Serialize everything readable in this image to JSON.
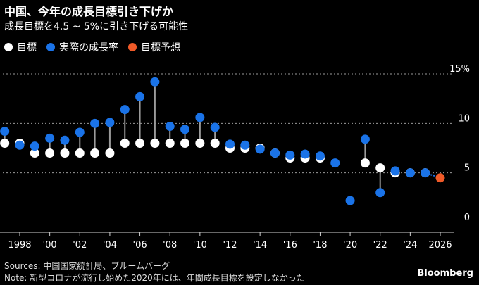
{
  "header": {
    "title": "中国、今年の成長目標引き下げか",
    "subtitle": "成長目標を4.5 ~ 5%に引き下げる可能性"
  },
  "legend": [
    {
      "label": "目標",
      "color": "#ffffff"
    },
    {
      "label": "実際の成長率",
      "color": "#1a73e8"
    },
    {
      "label": "目標予想",
      "color": "#f05a28"
    }
  ],
  "chart_data": {
    "type": "scatter",
    "title": "中国、今年の成長目標引き下げか",
    "ylim": [
      0,
      15
    ],
    "yticks": [
      0,
      5,
      10,
      15
    ],
    "ytick_labels": [
      "0",
      "5",
      "10",
      "15%"
    ],
    "gridlines": [
      5,
      10,
      15
    ],
    "xlim": [
      1997,
      2027
    ],
    "xticks": [
      1998,
      2000,
      2002,
      2004,
      2006,
      2008,
      2010,
      2012,
      2014,
      2016,
      2018,
      2020,
      2022,
      2024,
      2026
    ],
    "xtick_labels": [
      "1998",
      "'00",
      "'02",
      "'04",
      "'06",
      "'08",
      "'10",
      "'12",
      "'14",
      "'16",
      "'18",
      "'20",
      "'22",
      "'24",
      "2026"
    ],
    "series": [
      {
        "name": "目標",
        "color": "#ffffff",
        "points": [
          [
            1997,
            8
          ],
          [
            1998,
            8
          ],
          [
            1999,
            7
          ],
          [
            2000,
            7
          ],
          [
            2001,
            7
          ],
          [
            2002,
            7
          ],
          [
            2003,
            7
          ],
          [
            2004,
            7
          ],
          [
            2005,
            8
          ],
          [
            2006,
            8
          ],
          [
            2007,
            8
          ],
          [
            2008,
            8
          ],
          [
            2009,
            8
          ],
          [
            2010,
            8
          ],
          [
            2011,
            8
          ],
          [
            2012,
            7.5
          ],
          [
            2013,
            7.5
          ],
          [
            2014,
            7.5
          ],
          [
            2015,
            7
          ],
          [
            2016,
            6.5
          ],
          [
            2017,
            6.5
          ],
          [
            2018,
            6.5
          ],
          [
            2021,
            6
          ],
          [
            2022,
            5.5
          ],
          [
            2023,
            5
          ],
          [
            2024,
            5
          ],
          [
            2025,
            5
          ]
        ]
      },
      {
        "name": "実際の成長率",
        "color": "#1a73e8",
        "points": [
          [
            1997,
            9.2
          ],
          [
            1998,
            7.8
          ],
          [
            1999,
            7.7
          ],
          [
            2000,
            8.5
          ],
          [
            2001,
            8.3
          ],
          [
            2002,
            9.1
          ],
          [
            2003,
            10
          ],
          [
            2004,
            10.1
          ],
          [
            2005,
            11.4
          ],
          [
            2006,
            12.7
          ],
          [
            2007,
            14.2
          ],
          [
            2008,
            9.7
          ],
          [
            2009,
            9.4
          ],
          [
            2010,
            10.6
          ],
          [
            2011,
            9.6
          ],
          [
            2012,
            7.9
          ],
          [
            2013,
            7.8
          ],
          [
            2014,
            7.4
          ],
          [
            2015,
            7
          ],
          [
            2016,
            6.8
          ],
          [
            2017,
            6.9
          ],
          [
            2018,
            6.7
          ],
          [
            2019,
            6
          ],
          [
            2020,
            2.2
          ],
          [
            2021,
            8.4
          ],
          [
            2022,
            3
          ],
          [
            2023,
            5.2
          ],
          [
            2024,
            5
          ],
          [
            2025,
            5
          ]
        ]
      },
      {
        "name": "目標予想",
        "color": "#f05a28",
        "points": [
          [
            2026,
            4.5
          ]
        ]
      }
    ]
  },
  "footer": {
    "sources": "Sources: 中国国家統計局、ブルームバーグ",
    "note": "Note: 新型コロナが流行し始めた2020年には、年間成長目標を設定しなかった",
    "brand": "Bloomberg"
  }
}
